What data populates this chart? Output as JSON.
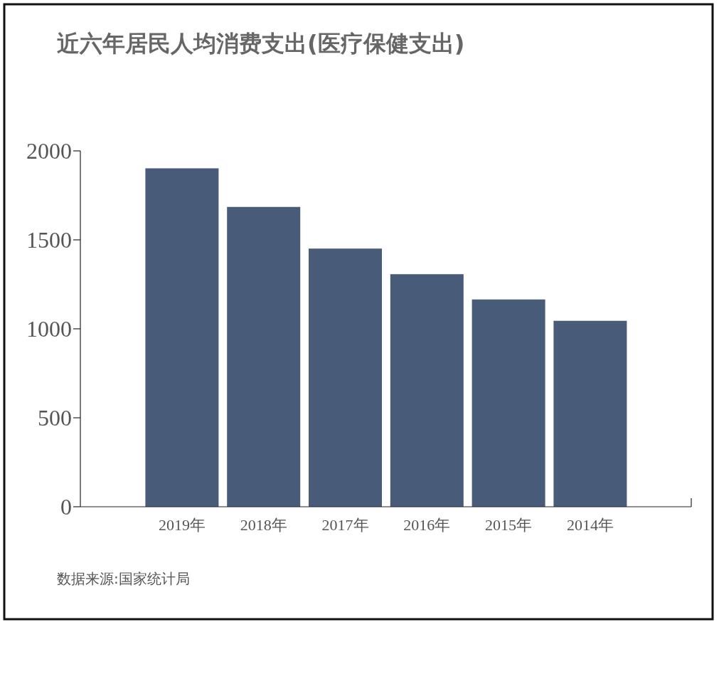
{
  "chart_data": {
    "type": "bar",
    "title": "近六年居民人均消费支出(医疗保健支出)",
    "categories": [
      "2019年",
      "2018年",
      "2017年",
      "2016年",
      "2015年",
      "2014年"
    ],
    "values": [
      1902,
      1685,
      1451,
      1307,
      1165,
      1045
    ],
    "color": "#485c7a",
    "ylim": [
      0,
      2000
    ],
    "yticks": [
      0,
      500,
      1000,
      1500,
      2000
    ],
    "grid": false,
    "annotations": [
      "数据来源:国家统计局"
    ]
  }
}
